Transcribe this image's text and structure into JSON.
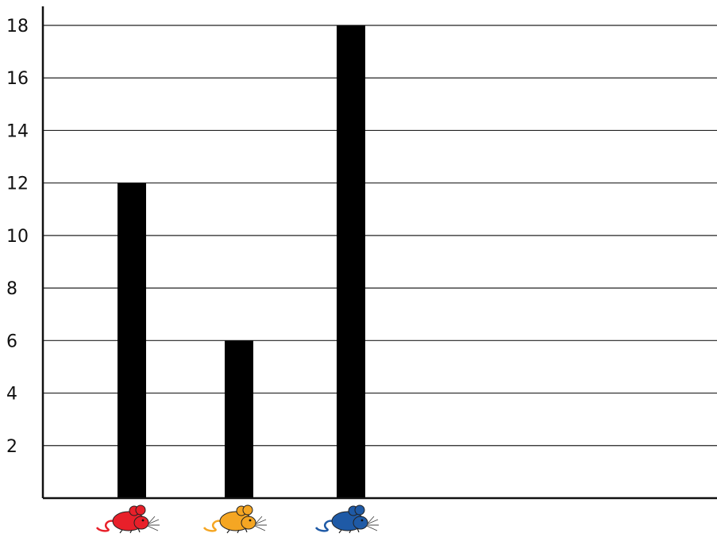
{
  "chart_data": {
    "type": "bar",
    "title": "",
    "xlabel": "",
    "ylabel": "",
    "ylim": [
      0,
      18
    ],
    "y_ticks": [
      "2",
      "4",
      "6",
      "8",
      "10",
      "12",
      "14",
      "16",
      "18"
    ],
    "categories": [
      "red mouse",
      "yellow mouse",
      "blue mouse"
    ],
    "values": [
      12,
      6,
      18
    ],
    "category_icons": [
      "mouse-icon",
      "mouse-icon",
      "mouse-icon"
    ],
    "category_colors": [
      "#e8202a",
      "#f5a623",
      "#1f5aa6"
    ],
    "bar_color": "#000000",
    "grid": true
  }
}
